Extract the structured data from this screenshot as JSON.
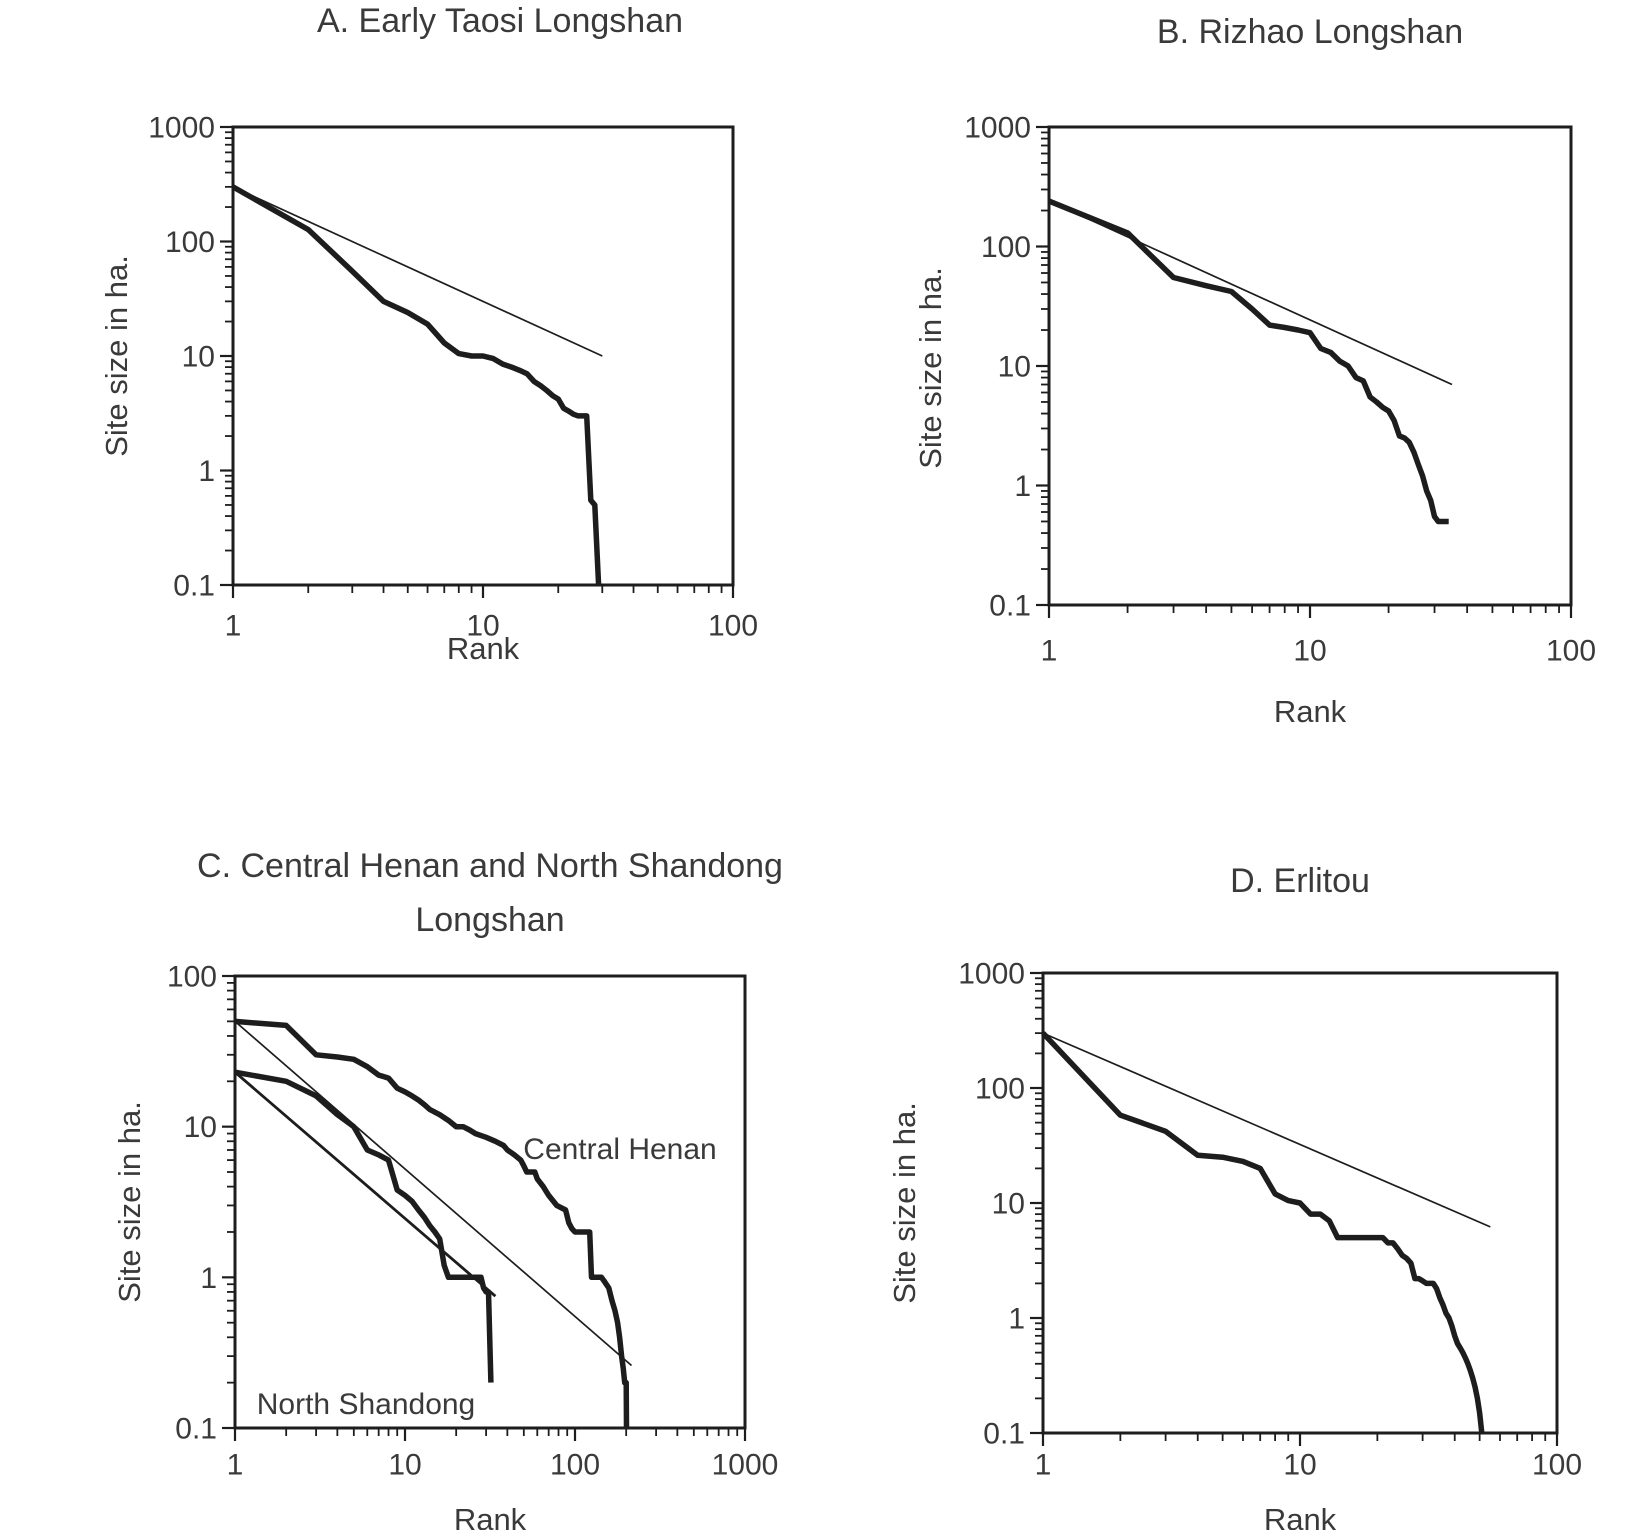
{
  "colors": {
    "background": "#ffffff",
    "ink": "#1d1d1d",
    "text": "#3a3a3a"
  },
  "chart_data": [
    {
      "panel": "A",
      "type": "line",
      "title": "A. Early Taosi Longshan",
      "xlabel": "Rank",
      "ylabel": "Site size in ha.",
      "x_scale": "log",
      "y_scale": "log",
      "xlim": [
        1,
        100
      ],
      "ylim": [
        0.1,
        1000
      ],
      "x_ticks": [
        1,
        10,
        100
      ],
      "y_ticks": [
        1000,
        100,
        10,
        1,
        0.1
      ],
      "grid": false,
      "legend": "none",
      "series": [
        {
          "name": "observed site sizes",
          "style": "thick",
          "points": [
            [
              1,
              300
            ],
            [
              2,
              127
            ],
            [
              3,
              55
            ],
            [
              4,
              30
            ],
            [
              5,
              24
            ],
            [
              6,
              19
            ],
            [
              7,
              13
            ],
            [
              8,
              10.5
            ],
            [
              9,
              10
            ],
            [
              10,
              10
            ],
            [
              11,
              9.5
            ],
            [
              12,
              8.5
            ],
            [
              13,
              8
            ],
            [
              14,
              7.5
            ],
            [
              15,
              7
            ],
            [
              16,
              6
            ],
            [
              17,
              5.5
            ],
            [
              18,
              5
            ],
            [
              19,
              4.5
            ],
            [
              20,
              4.2
            ],
            [
              21,
              3.5
            ],
            [
              22,
              3.3
            ],
            [
              23,
              3.1
            ],
            [
              24,
              3
            ],
            [
              25,
              3
            ],
            [
              26,
              3
            ],
            [
              27,
              0.55
            ],
            [
              28,
              0.5
            ],
            [
              29,
              0.1
            ]
          ]
        },
        {
          "name": "reference line",
          "style": "thin",
          "points": [
            [
              1,
              300
            ],
            [
              30,
              10
            ]
          ]
        }
      ]
    },
    {
      "panel": "B",
      "type": "line",
      "title": "B. Rizhao Longshan",
      "xlabel": "Rank",
      "ylabel": "Site size in ha.",
      "x_scale": "log",
      "y_scale": "log",
      "xlim": [
        1,
        100
      ],
      "ylim": [
        0.1,
        1000
      ],
      "x_ticks": [
        1,
        10,
        100
      ],
      "y_ticks": [
        1000,
        100,
        10,
        1,
        0.1
      ],
      "grid": false,
      "legend": "none",
      "series": [
        {
          "name": "observed site sizes",
          "style": "thick",
          "points": [
            [
              1,
              240
            ],
            [
              2,
              130
            ],
            [
              3,
              55
            ],
            [
              4,
              47
            ],
            [
              5,
              42
            ],
            [
              6,
              30
            ],
            [
              7,
              22
            ],
            [
              8,
              21
            ],
            [
              9,
              20
            ],
            [
              10,
              19
            ],
            [
              11,
              14
            ],
            [
              12,
              13
            ],
            [
              13,
              11
            ],
            [
              14,
              10
            ],
            [
              15,
              8
            ],
            [
              16,
              7.5
            ],
            [
              17,
              5.5
            ],
            [
              18,
              5
            ],
            [
              19,
              4.5
            ],
            [
              20,
              4.2
            ],
            [
              21,
              3.5
            ],
            [
              22,
              2.6
            ],
            [
              23,
              2.5
            ],
            [
              24,
              2.3
            ],
            [
              25,
              1.9
            ],
            [
              26,
              1.5
            ],
            [
              27,
              1.2
            ],
            [
              28,
              0.9
            ],
            [
              29,
              0.75
            ],
            [
              30,
              0.55
            ],
            [
              31,
              0.5
            ],
            [
              32,
              0.5
            ],
            [
              33,
              0.5
            ],
            [
              34,
              0.5
            ]
          ]
        },
        {
          "name": "reference line",
          "style": "thin",
          "points": [
            [
              1,
              240
            ],
            [
              35,
              7
            ]
          ]
        }
      ]
    },
    {
      "panel": "C",
      "type": "line",
      "title": "C. Central Henan and North Shandong",
      "title_line2": "Longshan",
      "xlabel": "Rank",
      "ylabel": "Site size in ha.",
      "x_scale": "log",
      "y_scale": "log",
      "xlim": [
        1,
        1000
      ],
      "ylim": [
        0.1,
        100
      ],
      "x_ticks": [
        1,
        10,
        100,
        1000
      ],
      "y_ticks": [
        100,
        10,
        1,
        0.1
      ],
      "grid": false,
      "legend": "none",
      "annotations": [
        {
          "text": "Central Henan",
          "at_rank": 184,
          "at_size": 7
        },
        {
          "text": "North Shandong",
          "at_rank": 5.9,
          "at_size": 0.14
        }
      ],
      "series": [
        {
          "name": "Central Henan observed site sizes",
          "style": "thick",
          "points": [
            [
              1,
              50
            ],
            [
              2,
              47
            ],
            [
              3,
              30
            ],
            [
              4,
              29
            ],
            [
              5,
              28
            ],
            [
              6,
              25
            ],
            [
              7,
              22
            ],
            [
              8,
              21
            ],
            [
              9,
              18
            ],
            [
              10,
              17
            ],
            [
              11,
              16
            ],
            [
              12,
              15
            ],
            [
              13,
              14
            ],
            [
              14,
              13
            ],
            [
              16,
              12
            ],
            [
              18,
              11
            ],
            [
              20,
              10
            ],
            [
              22,
              10
            ],
            [
              24,
              9.5
            ],
            [
              26,
              9
            ],
            [
              30,
              8.5
            ],
            [
              34,
              8
            ],
            [
              38,
              7.5
            ],
            [
              40,
              7
            ],
            [
              44,
              6.5
            ],
            [
              48,
              6
            ],
            [
              50,
              5.5
            ],
            [
              52,
              5
            ],
            [
              58,
              5
            ],
            [
              60,
              4.5
            ],
            [
              65,
              4
            ],
            [
              70,
              3.5
            ],
            [
              78,
              3
            ],
            [
              88,
              2.8
            ],
            [
              92,
              2.3
            ],
            [
              96,
              2.1
            ],
            [
              100,
              2
            ],
            [
              122,
              2
            ],
            [
              125,
              1
            ],
            [
              143,
              1
            ],
            [
              148,
              0.95
            ],
            [
              158,
              0.85
            ],
            [
              165,
              0.7
            ],
            [
              172,
              0.6
            ],
            [
              178,
              0.5
            ],
            [
              183,
              0.4
            ],
            [
              188,
              0.3
            ],
            [
              192,
              0.25
            ],
            [
              196,
              0.2
            ],
            [
              200,
              0.2
            ],
            [
              201,
              0.1
            ]
          ]
        },
        {
          "name": "North Shandong observed site sizes",
          "style": "thick",
          "points": [
            [
              1,
              23
            ],
            [
              2,
              20
            ],
            [
              3,
              16
            ],
            [
              4,
              12
            ],
            [
              5,
              10
            ],
            [
              6,
              7
            ],
            [
              7,
              6.5
            ],
            [
              8,
              6
            ],
            [
              9,
              3.8
            ],
            [
              10,
              3.5
            ],
            [
              11,
              3.2
            ],
            [
              12,
              2.8
            ],
            [
              13,
              2.5
            ],
            [
              14,
              2.2
            ],
            [
              15,
              2
            ],
            [
              16,
              1.8
            ],
            [
              17,
              1.2
            ],
            [
              18,
              1
            ],
            [
              20,
              1
            ],
            [
              23,
              1
            ],
            [
              26,
              1
            ],
            [
              28,
              1
            ],
            [
              29,
              0.85
            ],
            [
              30,
              0.8
            ],
            [
              31,
              0.8
            ],
            [
              32,
              0.2
            ]
          ]
        },
        {
          "name": "Central Henan reference line",
          "style": "thin",
          "points": [
            [
              1,
              50
            ],
            [
              215,
              0.26
            ]
          ]
        },
        {
          "name": "North Shandong reference line",
          "style": "medium",
          "points": [
            [
              1,
              23
            ],
            [
              34,
              0.75
            ]
          ]
        }
      ]
    },
    {
      "panel": "D",
      "type": "line",
      "title": "D. Erlitou",
      "xlabel": "Rank",
      "ylabel": "Site size in ha.",
      "x_scale": "log",
      "y_scale": "log",
      "xlim": [
        1,
        100
      ],
      "ylim": [
        0.1,
        1000
      ],
      "x_ticks": [
        1,
        10,
        100
      ],
      "y_ticks": [
        1000,
        100,
        10,
        1,
        0.1
      ],
      "grid": false,
      "legend": "none",
      "series": [
        {
          "name": "observed site sizes",
          "style": "thick",
          "points": [
            [
              1,
              300
            ],
            [
              2,
              58
            ],
            [
              3,
              42
            ],
            [
              4,
              26
            ],
            [
              5,
              25
            ],
            [
              6,
              23
            ],
            [
              7,
              20
            ],
            [
              8,
              12
            ],
            [
              9,
              10.5
            ],
            [
              10,
              10
            ],
            [
              11,
              8
            ],
            [
              12,
              8
            ],
            [
              13,
              7
            ],
            [
              14,
              5
            ],
            [
              16,
              5
            ],
            [
              18,
              5
            ],
            [
              20,
              5
            ],
            [
              21,
              5
            ],
            [
              22,
              4.5
            ],
            [
              23,
              4.5
            ],
            [
              24,
              4
            ],
            [
              25,
              3.5
            ],
            [
              26,
              3.3
            ],
            [
              27,
              3
            ],
            [
              28,
              2.2
            ],
            [
              29,
              2.2
            ],
            [
              30,
              2.1
            ],
            [
              31,
              2
            ],
            [
              32,
              2
            ],
            [
              33,
              2
            ],
            [
              34,
              1.8
            ],
            [
              35,
              1.5
            ],
            [
              36,
              1.3
            ],
            [
              37,
              1.1
            ],
            [
              38,
              1
            ],
            [
              39,
              0.85
            ],
            [
              40,
              0.7
            ],
            [
              41,
              0.6
            ],
            [
              42,
              0.55
            ],
            [
              43,
              0.5
            ],
            [
              44,
              0.45
            ],
            [
              45,
              0.4
            ],
            [
              46,
              0.35
            ],
            [
              47,
              0.3
            ],
            [
              48,
              0.25
            ],
            [
              49,
              0.2
            ],
            [
              50,
              0.15
            ],
            [
              51,
              0.1
            ]
          ]
        },
        {
          "name": "reference line",
          "style": "thin",
          "points": [
            [
              1,
              300
            ],
            [
              55,
              6.2
            ]
          ]
        }
      ]
    }
  ]
}
